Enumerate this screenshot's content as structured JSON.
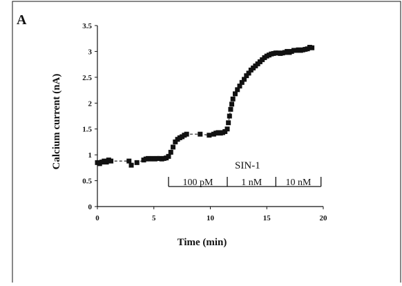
{
  "panel_label": "A",
  "chart_data": {
    "type": "scatter",
    "title": "",
    "xlabel": "Time (min)",
    "ylabel": "Calcium current (nA)",
    "xlim": [
      0,
      20
    ],
    "ylim": [
      0,
      3.5
    ],
    "xticks": [
      0,
      5,
      10,
      15,
      20
    ],
    "xtick_labels": [
      "0",
      "5",
      "10",
      "15",
      "20"
    ],
    "yticks": [
      0,
      0.5,
      1,
      1.5,
      2,
      2.5,
      3,
      3.5
    ],
    "ytick_labels": [
      "0",
      "0.5",
      "1",
      "1.5",
      "2",
      "2.5",
      "3",
      "3.5"
    ],
    "grid": false,
    "legend": null,
    "marker": "square",
    "line_style": "dashed",
    "series": [
      {
        "x": [
          0.0,
          0.2,
          0.4,
          0.6,
          0.8,
          1.0,
          1.2,
          2.8,
          3.0,
          3.5,
          4.1,
          4.3,
          4.5,
          4.7,
          4.9,
          5.1,
          5.3,
          5.5,
          5.7,
          5.9,
          6.1,
          6.3,
          6.5,
          6.7,
          6.9,
          7.1,
          7.3,
          7.5,
          7.7,
          7.9,
          9.1,
          9.9,
          10.3,
          10.5,
          10.7,
          10.9,
          11.1,
          11.3,
          11.5,
          11.6,
          11.7,
          11.8,
          11.9,
          12.0,
          12.2,
          12.4,
          12.6,
          12.8,
          13.0,
          13.2,
          13.4,
          13.6,
          13.8,
          14.0,
          14.2,
          14.4,
          14.6,
          14.8,
          15.0,
          15.2,
          15.4,
          15.6,
          15.8,
          16.0,
          16.2,
          16.4,
          16.6,
          16.8,
          17.0,
          17.2,
          17.4,
          17.6,
          17.8,
          18.0,
          18.2,
          18.4,
          18.6,
          18.8,
          19.0
        ],
        "y": [
          0.85,
          0.83,
          0.86,
          0.88,
          0.86,
          0.9,
          0.88,
          0.88,
          0.8,
          0.85,
          0.9,
          0.92,
          0.93,
          0.92,
          0.93,
          0.92,
          0.93,
          0.93,
          0.92,
          0.93,
          0.94,
          0.97,
          1.05,
          1.15,
          1.25,
          1.3,
          1.33,
          1.35,
          1.38,
          1.4,
          1.4,
          1.38,
          1.4,
          1.42,
          1.43,
          1.42,
          1.43,
          1.45,
          1.5,
          1.62,
          1.75,
          1.88,
          1.98,
          2.08,
          2.18,
          2.26,
          2.33,
          2.4,
          2.46,
          2.53,
          2.58,
          2.64,
          2.68,
          2.72,
          2.76,
          2.8,
          2.84,
          2.88,
          2.91,
          2.93,
          2.95,
          2.96,
          2.97,
          2.97,
          2.96,
          2.97,
          2.98,
          3.0,
          2.98,
          3.0,
          3.02,
          3.02,
          3.03,
          3.02,
          3.03,
          3.04,
          3.05,
          3.08,
          3.07
        ]
      }
    ],
    "annotations": {
      "drug_label": "SIN-1",
      "segments": [
        {
          "label": "100 pM",
          "x_start": 6.3,
          "x_end": 11.5
        },
        {
          "label": "1 nM",
          "x_start": 11.5,
          "x_end": 15.8
        },
        {
          "label": "10 nM",
          "x_start": 15.8,
          "x_end": 19.8
        }
      ]
    }
  }
}
